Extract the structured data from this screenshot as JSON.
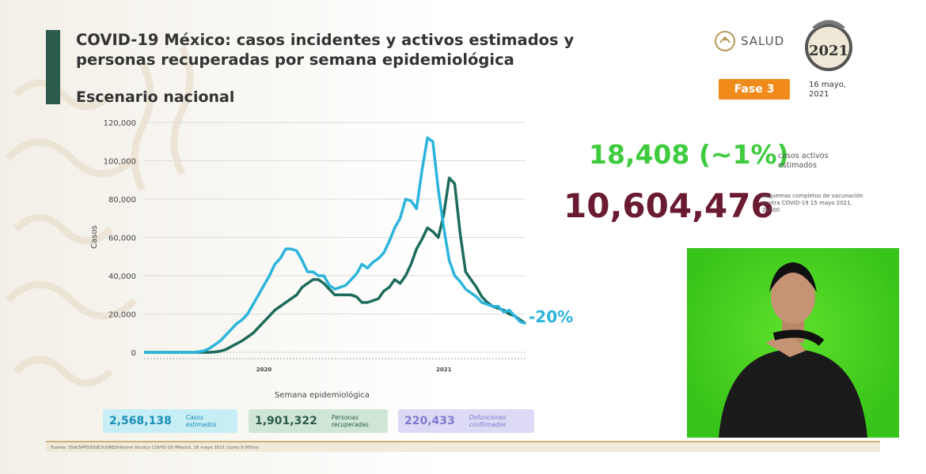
{
  "header": {
    "title": "COVID-19 México: casos incidentes y activos estimados y personas recuperadas por semana epidemiológica",
    "subtitle": "Escenario nacional",
    "logo_text": "SALUD",
    "seal_year": "2021",
    "phase": "Fase 3",
    "date": "16 mayo,\n2021"
  },
  "stats": {
    "active": "18,408 (~1%)",
    "active_label": "casos activos estimados",
    "vaccination": "10,604,476",
    "vaccination_label": "esquemas completos de vacunación contra COVID-19 15 mayo 2021, 21h00"
  },
  "summary": {
    "estimated_cases": "2,568,138",
    "estimated_cases_label": "Casos estimados",
    "recovered": "1,901,322",
    "recovered_label": "Personas recuperadas",
    "deaths": "220,433",
    "deaths_label": "Defunciones confirmadas"
  },
  "footer": {
    "source": "Fuente: SSA/SPPS/DGE/InDRE/Informe técnico COVID-19 /México. 16 mayo 2021 (corte 9:00hrs)"
  },
  "colors": {
    "estimated_line": "#2bb4dc",
    "recovered_line": "#1d6b5c",
    "active_text": "#3ecb3e",
    "vaccination_text": "#6a1a31",
    "phase_badge": "#f08a1a"
  },
  "chart_data": {
    "type": "line",
    "xlabel": "Semana epidemiológica",
    "ylabel": "Casos",
    "ylim": [
      0,
      120000
    ],
    "yticks": [
      0,
      20000,
      40000,
      60000,
      80000,
      100000,
      120000
    ],
    "ytick_labels": [
      "0",
      "20,000",
      "40,000",
      "60,000",
      "80,000",
      "100,000",
      "120,000"
    ],
    "x_year_labels": [
      {
        "week_index": 22,
        "label": "2020"
      },
      {
        "week_index": 55,
        "label": "2021"
      }
    ],
    "annotation": "-20%",
    "series": [
      {
        "role": "estimated",
        "values": [
          0,
          0,
          0,
          0,
          0,
          0,
          0,
          0,
          0,
          0,
          300,
          800,
          2000,
          4000,
          6000,
          9000,
          12000,
          15000,
          17000,
          20000,
          25000,
          30000,
          35000,
          40000,
          46000,
          49000,
          54000,
          54000,
          53000,
          48000,
          42000,
          42000,
          40000,
          40000,
          35000,
          33000,
          34000,
          35000,
          38000,
          41000,
          46000,
          44000,
          47000,
          49000,
          52000,
          58000,
          65000,
          70000,
          80000,
          79000,
          75000,
          95000,
          112000,
          110000,
          85000,
          65000,
          48000,
          40000,
          37000,
          33000,
          31000,
          29000,
          26000,
          25000,
          24000,
          24000,
          21000,
          22000,
          19000,
          16000,
          15000
        ]
      },
      {
        "role": "recovered",
        "values": [
          0,
          0,
          0,
          0,
          0,
          0,
          0,
          0,
          0,
          0,
          0,
          0,
          0,
          200,
          600,
          1500,
          3000,
          4500,
          6000,
          8000,
          10000,
          13000,
          16000,
          19000,
          22000,
          24000,
          26000,
          28000,
          30000,
          34000,
          36000,
          38000,
          38000,
          36000,
          33000,
          30000,
          30000,
          30000,
          30000,
          29000,
          26000,
          26000,
          27000,
          28000,
          32000,
          34000,
          38000,
          36000,
          40000,
          46000,
          54000,
          59000,
          65000,
          63000,
          60000,
          72000,
          91000,
          88000,
          62000,
          42000,
          38000,
          34000,
          29000,
          26000,
          24000,
          23000,
          22000,
          20000,
          19000,
          17000,
          15000
        ]
      }
    ]
  }
}
